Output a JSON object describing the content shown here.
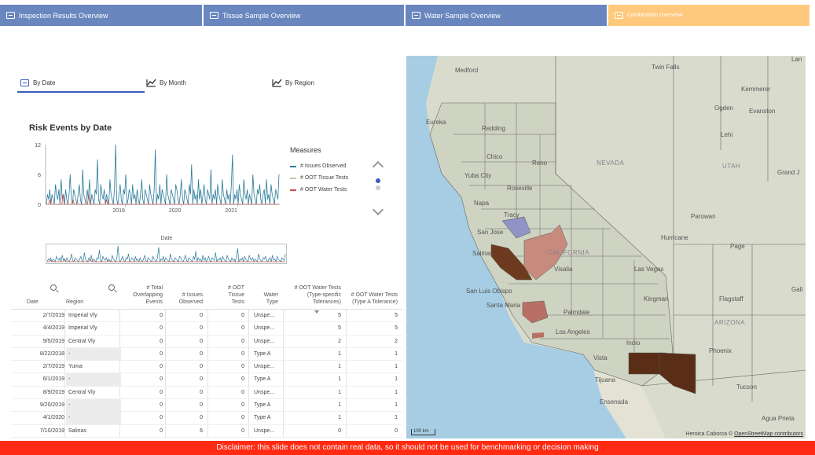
{
  "nav": {
    "tabs": [
      {
        "label": "Inspection Results Overview"
      },
      {
        "label": "Tissue Sample Overview"
      },
      {
        "label": "Water Sample Overview"
      },
      {
        "label": "Combination Overview"
      }
    ],
    "active_index": 3
  },
  "subtabs": [
    {
      "label": "By Date",
      "icon": "table-icon"
    },
    {
      "label": "By Month",
      "icon": "line-chart-icon"
    },
    {
      "label": "By Region",
      "icon": "line-chart-icon"
    }
  ],
  "chart": {
    "title": "Risk Events by Date",
    "xlabel": "Date",
    "legend_title": "Measures",
    "brush_label": "Date"
  },
  "chart_data": {
    "type": "line",
    "title": "Risk Events by Date",
    "xlabel": "Date",
    "ylabel": "",
    "ylim": [
      0,
      12
    ],
    "yticks": [
      0,
      6,
      12
    ],
    "xticks": [
      "2019",
      "2020",
      "2021"
    ],
    "legend_title": "Measures",
    "legend_position": "right",
    "series": [
      {
        "name": "# Issues Observed",
        "color": "#2a7a9b",
        "values": [
          0,
          2,
          1,
          3,
          0,
          2,
          1,
          0,
          4,
          2,
          1,
          3,
          0,
          5,
          1,
          2,
          0,
          3,
          1,
          0,
          2,
          6,
          1,
          0,
          3,
          2,
          1,
          0,
          2,
          4,
          1,
          0,
          7,
          2,
          1,
          0,
          3,
          1,
          5,
          0,
          2,
          1,
          0,
          3,
          2,
          9,
          1,
          0,
          4,
          2,
          1,
          3,
          0,
          2,
          1,
          0,
          5,
          2,
          1,
          0,
          3,
          12,
          1,
          0,
          2,
          4,
          1,
          0,
          3,
          2,
          6,
          0,
          1,
          3,
          2,
          0,
          4,
          1,
          2,
          0,
          3,
          1,
          0,
          2,
          5,
          1,
          0,
          3,
          2,
          1,
          0,
          4,
          2,
          1,
          0,
          3,
          11,
          0,
          2,
          1,
          4,
          0,
          3,
          2,
          1,
          0,
          6,
          2,
          1,
          0,
          3,
          2,
          1,
          0,
          4,
          3,
          1,
          0,
          2,
          5,
          1,
          0,
          3,
          2,
          1,
          0,
          4,
          2,
          8,
          0,
          3,
          1,
          2,
          0,
          5,
          1,
          3,
          0,
          2,
          4,
          1,
          0,
          3,
          2,
          1,
          7,
          0,
          2,
          1,
          3,
          0,
          4,
          2,
          1,
          0,
          5,
          2,
          1,
          0,
          3,
          1,
          2,
          0,
          4,
          10,
          0,
          2,
          1,
          3,
          0,
          4,
          2,
          1,
          0,
          5,
          2,
          1,
          3,
          0,
          2,
          1,
          0,
          6,
          2,
          1,
          0,
          3,
          2,
          4,
          1,
          0,
          2,
          3,
          0,
          5,
          1,
          2,
          0,
          4,
          2,
          1,
          0,
          3,
          2,
          1,
          6
        ]
      },
      {
        "name": "# OOT Tissue Tests",
        "color": "#b8c9a8",
        "values": []
      },
      {
        "name": "# OOT Water Tests",
        "color": "#c2504a",
        "values": [
          0,
          0,
          0,
          1,
          0,
          0,
          0,
          0,
          0,
          0,
          0,
          0,
          0,
          0,
          0,
          2,
          0,
          0,
          0,
          0,
          0,
          0,
          0,
          0,
          1,
          0,
          0,
          0,
          0,
          0,
          0,
          0,
          0,
          0,
          0,
          0,
          0,
          0,
          2,
          0,
          0,
          0,
          0,
          0,
          0,
          0,
          0,
          0,
          0,
          0,
          0,
          0,
          0,
          0,
          1,
          0,
          0,
          0,
          0,
          0,
          0,
          0,
          0,
          0,
          0,
          0,
          0,
          0,
          0,
          0,
          0,
          0,
          0,
          0,
          0,
          0,
          0,
          0,
          0,
          0,
          0,
          0,
          0,
          0,
          0,
          0,
          0,
          0,
          0,
          0,
          0,
          0,
          0,
          0,
          0,
          0,
          0,
          0,
          0,
          0,
          0,
          0,
          0,
          0,
          0,
          0,
          0,
          0,
          0,
          0,
          0,
          0,
          0,
          0,
          0,
          0,
          0,
          0,
          0,
          0,
          0,
          0,
          0,
          0,
          0,
          0,
          0,
          0,
          0,
          0,
          0,
          0,
          0,
          0,
          0,
          0,
          0,
          0,
          0,
          0,
          0,
          0,
          0,
          0,
          0,
          0,
          0,
          0,
          0,
          0,
          0,
          0,
          0,
          0,
          0,
          0,
          0,
          0,
          0,
          0,
          0,
          0,
          0,
          0,
          0,
          0,
          0,
          0,
          0,
          0,
          0,
          0,
          0,
          0,
          0,
          0,
          0,
          0,
          0,
          0,
          0,
          0,
          0,
          0,
          0,
          0,
          0,
          0,
          0,
          0,
          0,
          0,
          0,
          0,
          0,
          0,
          0,
          0,
          0,
          0,
          0,
          0,
          0,
          0,
          0,
          0,
          0,
          0,
          0,
          0
        ]
      }
    ]
  },
  "table": {
    "columns": [
      "Date",
      "Region",
      "# Total Overlapping Events",
      "# Issues Observed",
      "# OOT Tissue Tests",
      "Water Type",
      "# OOT Water Tests (Type-specific Tolerances)",
      "# OOT Water Tests (Type A Tolerance)"
    ],
    "rows": [
      [
        "2/7/2019",
        "Imperial Vly",
        "0",
        "0",
        "0",
        "Unspe...",
        "5",
        "5"
      ],
      [
        "4/4/2019",
        "Imperial Vly",
        "0",
        "0",
        "0",
        "Unspe...",
        "5",
        "5"
      ],
      [
        "9/5/2019",
        "Central Vly",
        "0",
        "0",
        "0",
        "Unspe...",
        "2",
        "2"
      ],
      [
        "8/22/2018",
        "-",
        "0",
        "0",
        "0",
        "Type A",
        "1",
        "1"
      ],
      [
        "2/7/2019",
        "Yuma",
        "0",
        "0",
        "0",
        "Unspe...",
        "1",
        "1"
      ],
      [
        "6/1/2019",
        "-",
        "0",
        "0",
        "0",
        "Type A",
        "1",
        "1"
      ],
      [
        "8/9/2019",
        "Central Vly",
        "0",
        "0",
        "0",
        "Unspe...",
        "1",
        "1"
      ],
      [
        "9/20/2019",
        "-",
        "0",
        "0",
        "0",
        "Type A",
        "1",
        "1"
      ],
      [
        "4/1/2020",
        "-",
        "0",
        "0",
        "0",
        "Type A",
        "1",
        "1"
      ],
      [
        "7/10/2019",
        "Salinas",
        "0",
        "6",
        "0",
        "Unspe...",
        "0",
        "0"
      ]
    ]
  },
  "map": {
    "labels": {
      "medford": "Medford",
      "twin_falls": "Twin Falls",
      "kemmerer": "Kemmerer",
      "ogden": "Ogden",
      "evanston": "Evanston",
      "eureka": "Eureka",
      "redding": "Redding",
      "lehi": "Lehi",
      "chico": "Chico",
      "reno": "Reno",
      "nevada": "NEVADA",
      "utah": "UTAH",
      "grand_j": "Grand J",
      "yuba_city": "Yuba City",
      "roseville": "Roseville",
      "napa": "Napa",
      "tracy": "Tracy",
      "parowan": "Parowan",
      "san_jose": "San Jose",
      "hurricane": "Hurricane",
      "page": "Page",
      "salinas": "Salinas",
      "california": "CALIFORNIA",
      "visalia": "Visalia",
      "las_vegas": "Las Vegas",
      "san_luis_obispo": "San Luis Obispo",
      "kingman": "Kingman",
      "flagstaff": "Flagstaff",
      "gall": "Gall",
      "santa_maria": "Santa Maria",
      "palmdale": "Palmdale",
      "arizona": "ARIZONA",
      "los_angeles": "Los Angeles",
      "indio": "Indio",
      "phoenix": "Phoenix",
      "vista": "Vista",
      "tijuana": "Tijuana",
      "tucson": "Tucson",
      "ensenada": "Ensenada",
      "agua_prieta": "Agua Prieta",
      "heroica_caborca": "Heroica Caborca",
      "lan": "Lan"
    },
    "scale": "100 km",
    "attribution_prefix": "©",
    "attribution_link": "OpenStreetMap contributors"
  },
  "disclaimer": "Disclaimer: this slide does not contain real data, so it should not be used for benchmarking or decision making"
}
